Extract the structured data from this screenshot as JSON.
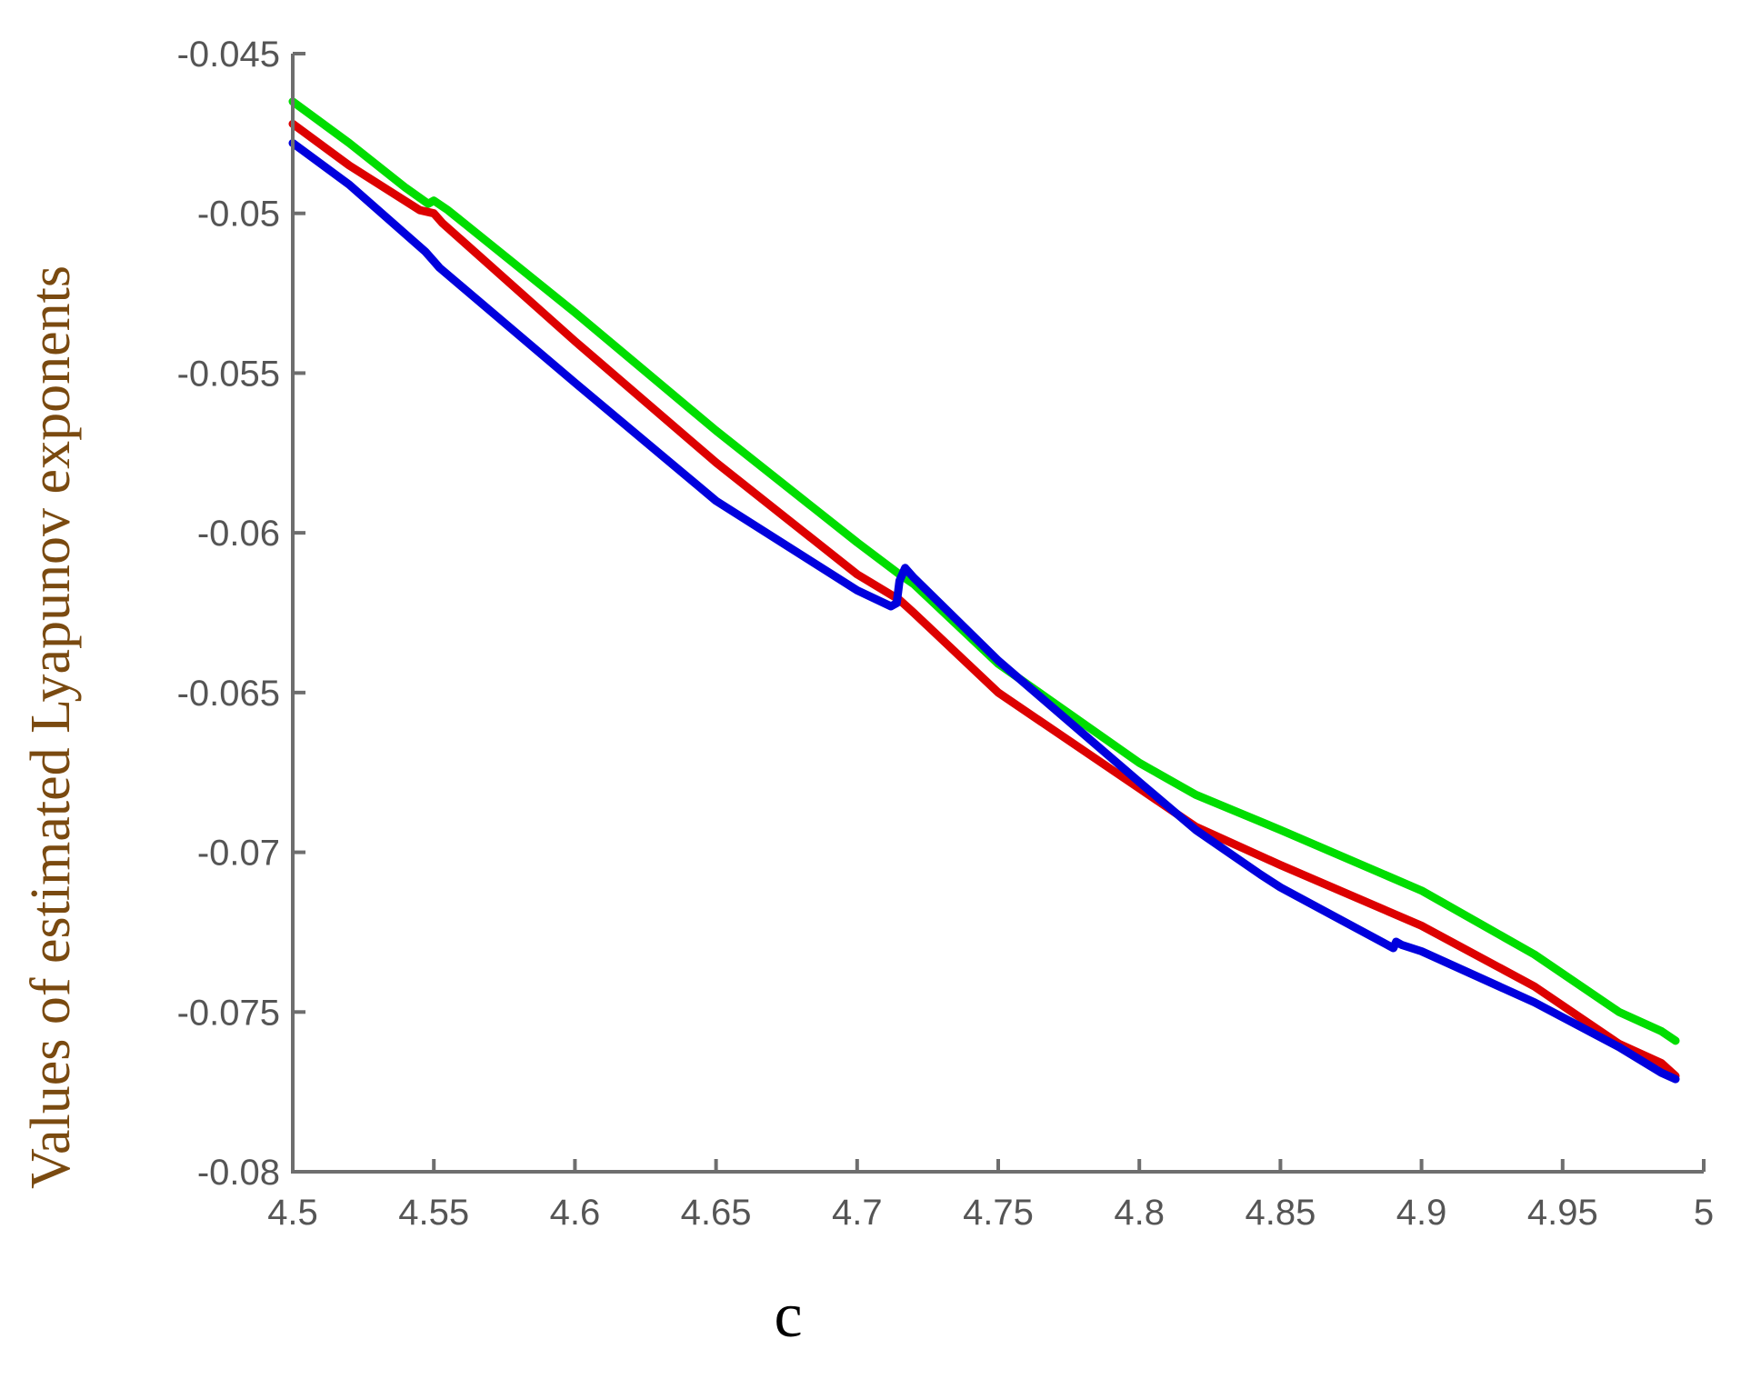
{
  "chart_data": {
    "type": "line",
    "title": "",
    "xlabel": "c",
    "ylabel": "Values of estimated Lyapunov exponents",
    "xlim": [
      4.5,
      5
    ],
    "ylim": [
      -0.08,
      -0.045
    ],
    "xticks": [
      4.5,
      4.55,
      4.6,
      4.65,
      4.7,
      4.75,
      4.8,
      4.85,
      4.9,
      4.95,
      5
    ],
    "xtick_labels": [
      "4.5",
      "4.55",
      "4.6",
      "4.65",
      "4.7",
      "4.75",
      "4.8",
      "4.85",
      "4.9",
      "4.95",
      "5"
    ],
    "yticks": [
      -0.08,
      -0.075,
      -0.07,
      -0.065,
      -0.06,
      -0.055,
      -0.05,
      -0.045
    ],
    "ytick_labels": [
      "-0.08",
      "-0.075",
      "-0.07",
      "-0.065",
      "-0.06",
      "-0.055",
      "-0.05",
      "-0.045"
    ],
    "grid": false,
    "legend": "none",
    "series": [
      {
        "color": "#00dd00",
        "x": [
          4.5,
          4.52,
          4.54,
          4.548,
          4.55,
          4.555,
          4.6,
          4.65,
          4.7,
          4.715,
          4.72,
          4.75,
          4.8,
          4.82,
          4.85,
          4.9,
          4.94,
          4.97,
          4.985,
          4.99
        ],
        "y": [
          -0.0465,
          -0.0478,
          -0.0492,
          -0.0497,
          -0.0496,
          -0.0499,
          -0.0531,
          -0.0568,
          -0.0603,
          -0.0613,
          -0.0616,
          -0.0641,
          -0.0672,
          -0.0682,
          -0.0693,
          -0.0712,
          -0.0732,
          -0.075,
          -0.0756,
          -0.0759
        ]
      },
      {
        "color": "#dd0000",
        "x": [
          4.5,
          4.52,
          4.545,
          4.55,
          4.553,
          4.6,
          4.65,
          4.7,
          4.715,
          4.72,
          4.75,
          4.8,
          4.82,
          4.85,
          4.9,
          4.94,
          4.97,
          4.985,
          4.99
        ],
        "y": [
          -0.0472,
          -0.0485,
          -0.0499,
          -0.05,
          -0.0503,
          -0.054,
          -0.0578,
          -0.0613,
          -0.0621,
          -0.0625,
          -0.065,
          -0.068,
          -0.0692,
          -0.0704,
          -0.0723,
          -0.0742,
          -0.076,
          -0.0766,
          -0.077
        ]
      },
      {
        "color": "#0000dd",
        "x": [
          4.5,
          4.52,
          4.547,
          4.55,
          4.552,
          4.6,
          4.65,
          4.7,
          4.712,
          4.714,
          4.715,
          4.717,
          4.72,
          4.75,
          4.8,
          4.82,
          4.843,
          4.85,
          4.89,
          4.891,
          4.893,
          4.9,
          4.94,
          4.97,
          4.985,
          4.99
        ],
        "y": [
          -0.0478,
          -0.0491,
          -0.0512,
          -0.0515,
          -0.0517,
          -0.0553,
          -0.059,
          -0.0618,
          -0.0623,
          -0.0622,
          -0.0615,
          -0.0611,
          -0.0614,
          -0.064,
          -0.0678,
          -0.0693,
          -0.0707,
          -0.0711,
          -0.073,
          -0.0728,
          -0.0729,
          -0.0731,
          -0.0747,
          -0.0761,
          -0.0769,
          -0.0771
        ]
      }
    ]
  }
}
